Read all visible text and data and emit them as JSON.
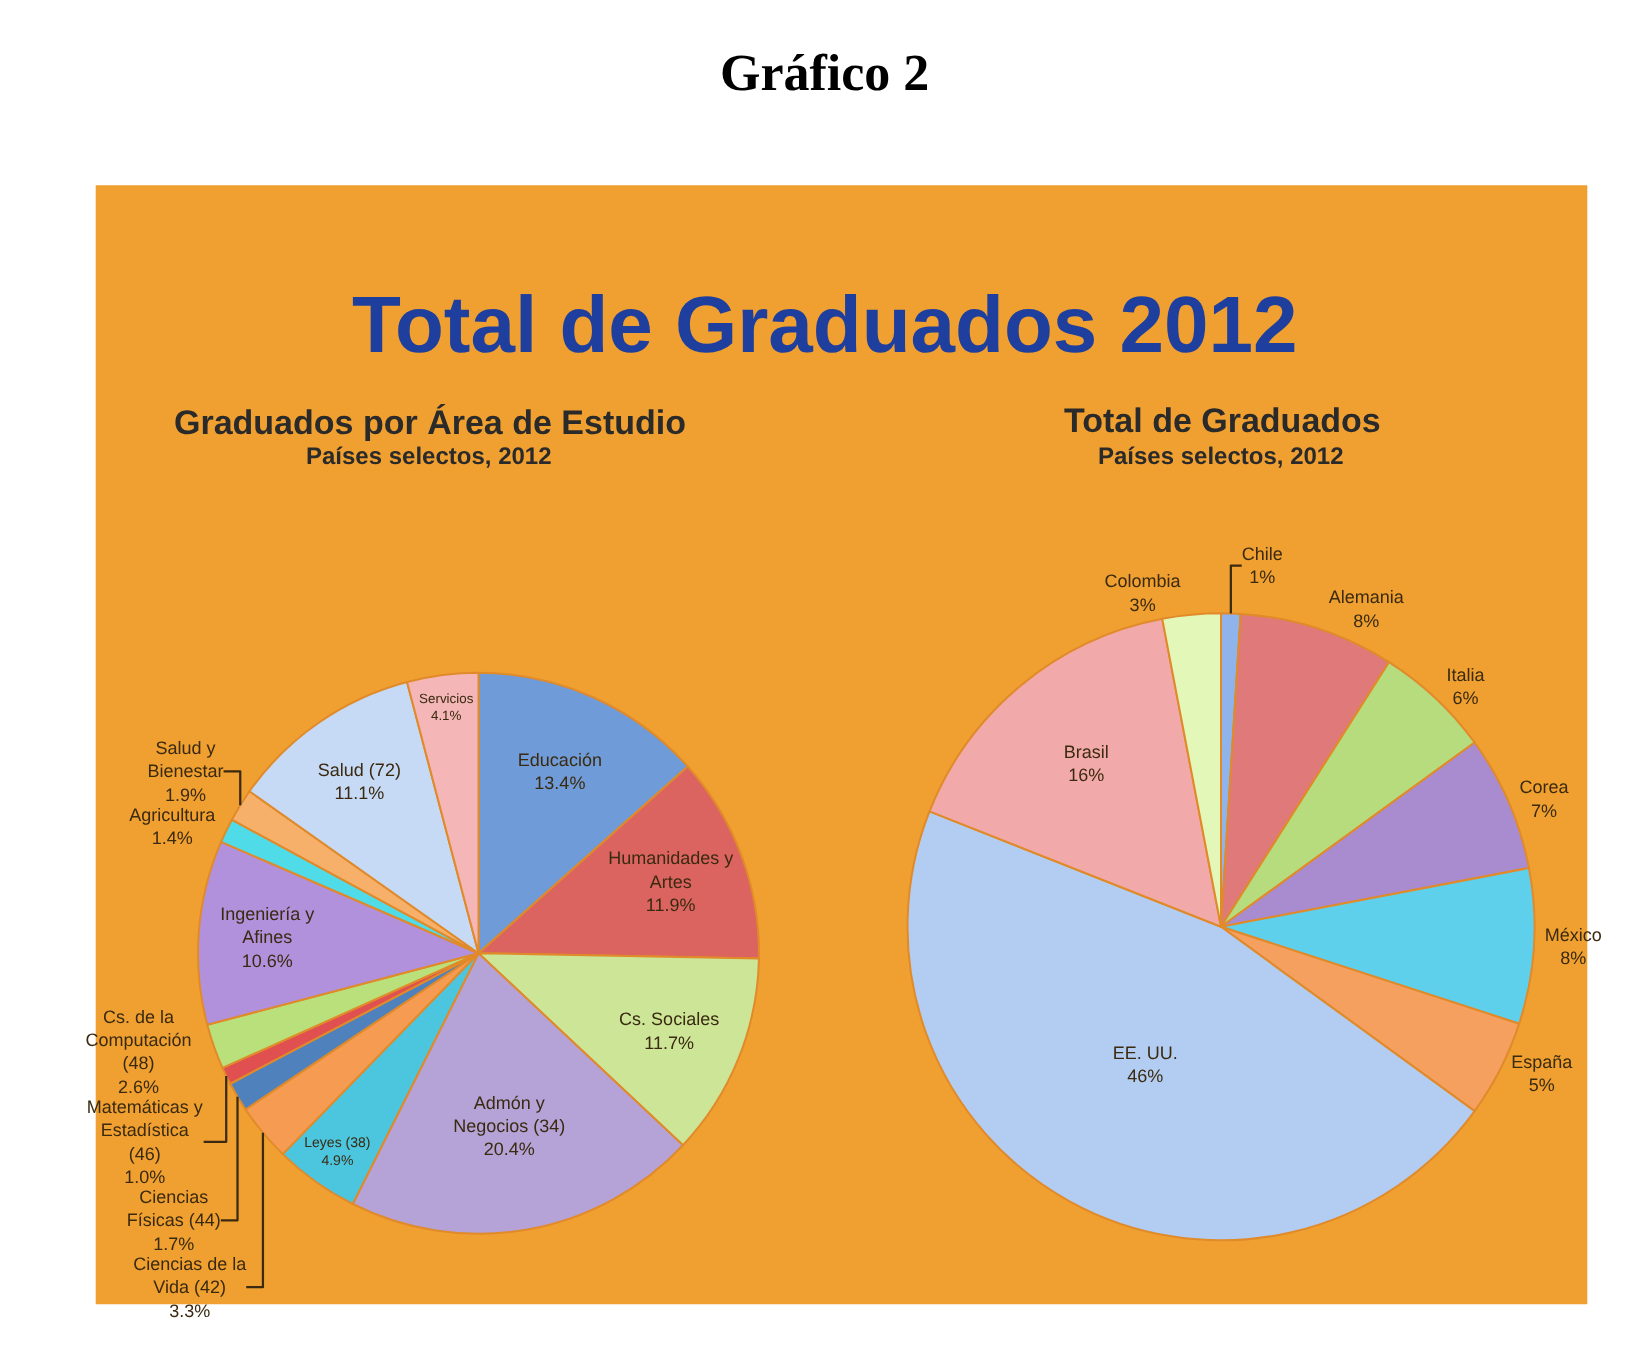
{
  "chart_data": [
    {
      "type": "pie",
      "title": "Graduados por Área de Estudio",
      "subtitle": "Países selectos, 2012",
      "annotations": [
        "Gráfico 2",
        "Total de Graduados 2012"
      ],
      "categories": [
        "Educación",
        "Humanidades y Artes",
        "Cs. Sociales",
        "Admón y Negocios (34)",
        "Leyes (38)",
        "Ciencias de la Vida (42)",
        "Ciencias Físicas (44)",
        "Matemáticas y Estadística (46)",
        "Cs. de la Computación (48)",
        "Ingeniería y Afines",
        "Agricultura",
        "Salud y Bienestar",
        "Salud (72)",
        "Servicios"
      ],
      "values": [
        13.4,
        11.9,
        11.7,
        20.4,
        4.9,
        3.3,
        1.7,
        1.0,
        2.6,
        10.6,
        1.4,
        1.9,
        11.1,
        4.1
      ],
      "value_labels": [
        "13.4%",
        "11.9%",
        "11.7%",
        "20.4%",
        "4.9%",
        "3.3%",
        "1.7%",
        "1.0%",
        "2.6%",
        "10.6%",
        "1.4%",
        "1.9%",
        "11.1%",
        "4.1%"
      ],
      "colors": [
        "#6f9bd8",
        "#dc6460",
        "#cde597",
        "#b5a3d8",
        "#4cc6df",
        "#f59c52",
        "#4f81bd",
        "#e05050",
        "#b9e07a",
        "#b190dc",
        "#4fdbe8",
        "#f7b06a",
        "#c6d9f5",
        "#f4b6b6"
      ]
    },
    {
      "type": "pie",
      "title": "Total de Graduados",
      "subtitle": "Países selectos, 2012",
      "categories": [
        "Chile",
        "Alemania",
        "Italia",
        "Corea",
        "México",
        "España",
        "EE. UU.",
        "Brasil",
        "Colombia"
      ],
      "values": [
        1,
        8,
        6,
        7,
        8,
        5,
        46,
        16,
        3
      ],
      "value_labels": [
        "1%",
        "8%",
        "6%",
        "7%",
        "8%",
        "5%",
        "46%",
        "16%",
        "3%"
      ],
      "colors": [
        "#8fb4ec",
        "#e07a7a",
        "#b7dc7d",
        "#a98bd0",
        "#5fd0ec",
        "#f5a05f",
        "#b3cdf2",
        "#f2a9a9",
        "#e3f7b8"
      ]
    }
  ]
}
